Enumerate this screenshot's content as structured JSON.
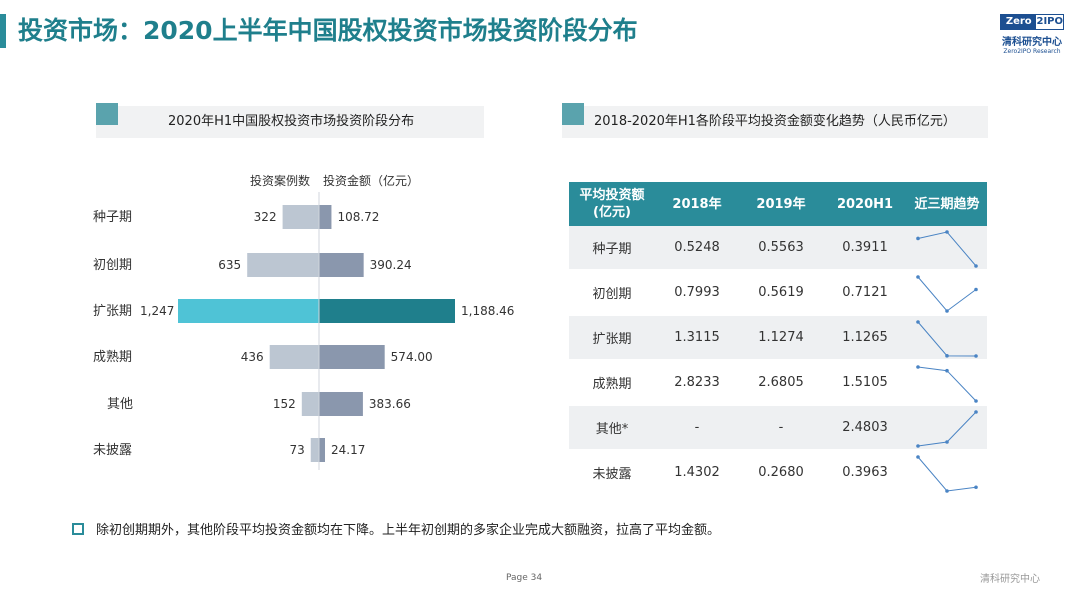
{
  "header": {
    "title": "投资市场：2020上半年中国股权投资市场投资阶段分布"
  },
  "logo": {
    "zero": "Zero",
    "ipo": "2IPO",
    "cn": "清科研究中心",
    "en": "Zero2IPO Research"
  },
  "left_panel": {
    "title": "2020年H1中国股权投资市场投资阶段分布",
    "col_cases": "投资案例数",
    "col_amount": "投资金额（亿元）"
  },
  "right_panel": {
    "title": "2018-2020年H1各阶段平均投资金额变化趋势（人民币亿元）",
    "headers": [
      "平均投资额\n(亿元)",
      "2018年",
      "2019年",
      "2020H1",
      "近三期趋势"
    ],
    "rows": [
      {
        "stage": "种子期",
        "y2018": "0.5248",
        "y2019": "0.5563",
        "y2020": "0.3911"
      },
      {
        "stage": "初创期",
        "y2018": "0.7993",
        "y2019": "0.5619",
        "y2020": "0.7121"
      },
      {
        "stage": "扩张期",
        "y2018": "1.3115",
        "y2019": "1.1274",
        "y2020": "1.1265"
      },
      {
        "stage": "成熟期",
        "y2018": "2.8233",
        "y2019": "2.6805",
        "y2020": "1.5105"
      },
      {
        "stage": "其他*",
        "y2018": "-",
        "y2019": "-",
        "y2020": "2.4803"
      },
      {
        "stage": "未披露",
        "y2018": "1.4302",
        "y2019": "0.2680",
        "y2020": "0.3963"
      }
    ]
  },
  "note": "除初创期期外，其他阶段平均投资金额均在下降。上半年初创期的多家企业完成大额融资，拉高了平均金额。",
  "page": "Page 34",
  "footer": "清科研究中心",
  "colors": {
    "accent": "#2a8c9a",
    "case_bar": "#bcc6d2",
    "case_bar_highlight": "#4fc3d6",
    "amount_bar": "#8a97ad",
    "amount_bar_highlight": "#1f7f8c",
    "spark": "#4a84c4"
  },
  "chart_data": [
    {
      "type": "bar",
      "title": "2020年H1中国股权投资市场投资阶段分布",
      "categories": [
        "种子期",
        "初创期",
        "扩张期",
        "成熟期",
        "其他",
        "未披露"
      ],
      "series": [
        {
          "name": "投资案例数",
          "values": [
            322,
            635,
            1247,
            436,
            152,
            73
          ],
          "labels": [
            "322",
            "635",
            "1,247",
            "436",
            "152",
            "73"
          ]
        },
        {
          "name": "投资金额（亿元）",
          "values": [
            108.72,
            390.24,
            1188.46,
            574.0,
            383.66,
            24.17
          ],
          "labels": [
            "108.72",
            "390.24",
            "1,188.46",
            "574.00",
            "383.66",
            "24.17"
          ]
        }
      ]
    },
    {
      "type": "line",
      "title": "近三期趋势",
      "categories": [
        "2018年",
        "2019年",
        "2020H1"
      ],
      "series": [
        {
          "name": "种子期",
          "values": [
            0.5248,
            0.5563,
            0.3911
          ]
        },
        {
          "name": "初创期",
          "values": [
            0.7993,
            0.5619,
            0.7121
          ]
        },
        {
          "name": "扩张期",
          "values": [
            1.3115,
            1.1274,
            1.1265
          ]
        },
        {
          "name": "成熟期",
          "values": [
            2.8233,
            2.6805,
            1.5105
          ]
        },
        {
          "name": "其他*",
          "values": [
            null,
            null,
            2.4803
          ]
        },
        {
          "name": "未披露",
          "values": [
            1.4302,
            0.268,
            0.3963
          ]
        }
      ]
    }
  ]
}
